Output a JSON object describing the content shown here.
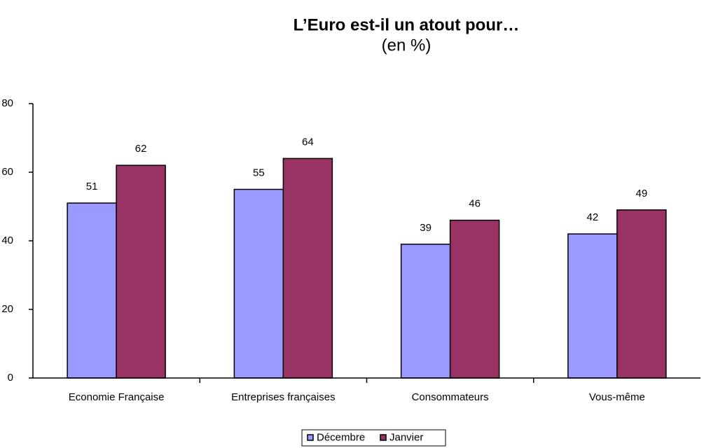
{
  "chart_data": {
    "type": "bar",
    "title": "L’Euro est-il un atout pour…",
    "subtitle": "(en %)",
    "categories": [
      "Economie Française",
      "Entreprises françaises",
      "Consommateurs",
      "Vous-même"
    ],
    "series": [
      {
        "name": "Décembre",
        "color": "#9999ff",
        "values": [
          51,
          55,
          39,
          42
        ]
      },
      {
        "name": "Janvier",
        "color": "#993366",
        "values": [
          62,
          64,
          46,
          49
        ]
      }
    ],
    "ylim": [
      0,
      80
    ],
    "yticks": [
      0,
      20,
      40,
      60,
      80
    ],
    "grid": false,
    "legend": "bottom"
  }
}
